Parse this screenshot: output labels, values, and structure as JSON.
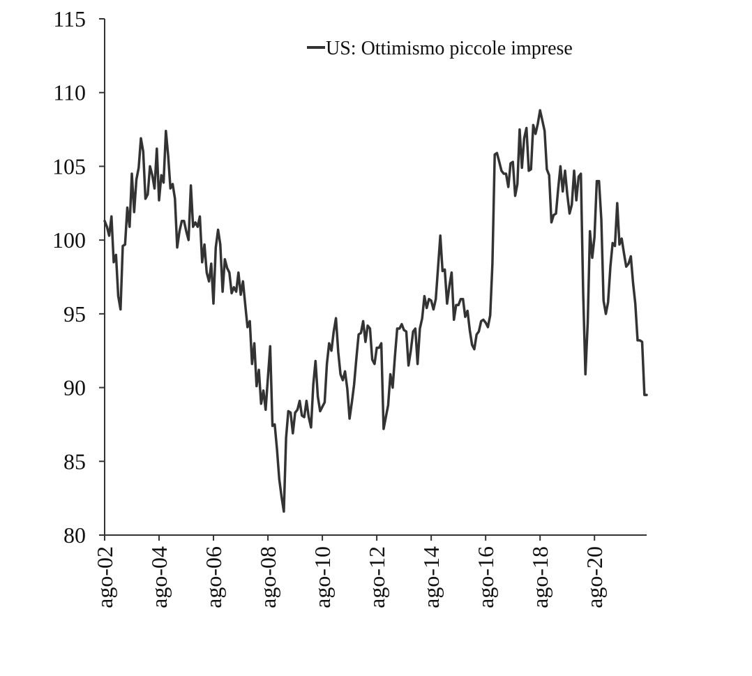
{
  "chart_data": {
    "type": "line",
    "title": "",
    "xlabel": "",
    "ylabel": "",
    "ylim": [
      80,
      115
    ],
    "yticks": [
      80,
      85,
      90,
      95,
      100,
      105,
      110,
      115
    ],
    "xlim": [
      2002.583,
      2022.5
    ],
    "xticks": [
      {
        "x": 2002.583,
        "label": "ago-02"
      },
      {
        "x": 2004.583,
        "label": "ago-04"
      },
      {
        "x": 2006.583,
        "label": "ago-06"
      },
      {
        "x": 2008.583,
        "label": "ago-08"
      },
      {
        "x": 2010.583,
        "label": "ago-10"
      },
      {
        "x": 2012.583,
        "label": "ago-12"
      },
      {
        "x": 2014.583,
        "label": "ago-14"
      },
      {
        "x": 2016.583,
        "label": "ago-16"
      },
      {
        "x": 2018.583,
        "label": "ago-18"
      },
      {
        "x": 2020.583,
        "label": "ago-20"
      }
    ],
    "grid": false,
    "legend_position": "top-right",
    "color": "#333333",
    "series": [
      {
        "name": "US: Ottimismo piccole imprese",
        "points": [
          [
            2002.583,
            101.3
          ],
          [
            2002.667,
            100.9
          ],
          [
            2002.75,
            100.3
          ],
          [
            2002.833,
            101.6
          ],
          [
            2002.917,
            98.5
          ],
          [
            2003.0,
            99.0
          ],
          [
            2003.083,
            96.2
          ],
          [
            2003.167,
            95.3
          ],
          [
            2003.25,
            99.6
          ],
          [
            2003.333,
            99.7
          ],
          [
            2003.417,
            102.2
          ],
          [
            2003.5,
            100.9
          ],
          [
            2003.583,
            104.5
          ],
          [
            2003.667,
            101.9
          ],
          [
            2003.75,
            104.1
          ],
          [
            2003.833,
            104.9
          ],
          [
            2003.917,
            106.9
          ],
          [
            2004.0,
            106.0
          ],
          [
            2004.083,
            102.8
          ],
          [
            2004.167,
            103.1
          ],
          [
            2004.25,
            105.0
          ],
          [
            2004.333,
            104.4
          ],
          [
            2004.417,
            103.5
          ],
          [
            2004.5,
            106.2
          ],
          [
            2004.583,
            102.7
          ],
          [
            2004.667,
            104.4
          ],
          [
            2004.75,
            103.9
          ],
          [
            2004.833,
            107.4
          ],
          [
            2004.917,
            105.7
          ],
          [
            2005.0,
            103.5
          ],
          [
            2005.083,
            103.8
          ],
          [
            2005.167,
            102.8
          ],
          [
            2005.25,
            99.5
          ],
          [
            2005.333,
            100.6
          ],
          [
            2005.417,
            101.3
          ],
          [
            2005.5,
            101.3
          ],
          [
            2005.583,
            100.6
          ],
          [
            2005.667,
            100.0
          ],
          [
            2005.75,
            103.7
          ],
          [
            2005.833,
            100.9
          ],
          [
            2005.917,
            101.2
          ],
          [
            2006.0,
            100.9
          ],
          [
            2006.083,
            101.6
          ],
          [
            2006.167,
            98.5
          ],
          [
            2006.25,
            99.7
          ],
          [
            2006.333,
            97.8
          ],
          [
            2006.417,
            97.2
          ],
          [
            2006.5,
            98.4
          ],
          [
            2006.583,
            95.7
          ],
          [
            2006.667,
            99.5
          ],
          [
            2006.75,
            100.7
          ],
          [
            2006.833,
            99.7
          ],
          [
            2006.917,
            96.5
          ],
          [
            2007.0,
            98.7
          ],
          [
            2007.083,
            98.1
          ],
          [
            2007.167,
            97.8
          ],
          [
            2007.25,
            96.4
          ],
          [
            2007.333,
            96.8
          ],
          [
            2007.417,
            96.5
          ],
          [
            2007.5,
            97.8
          ],
          [
            2007.583,
            96.3
          ],
          [
            2007.667,
            97.2
          ],
          [
            2007.75,
            95.6
          ],
          [
            2007.833,
            94.1
          ],
          [
            2007.917,
            94.5
          ],
          [
            2008.0,
            91.6
          ],
          [
            2008.083,
            93.0
          ],
          [
            2008.167,
            90.1
          ],
          [
            2008.25,
            91.2
          ],
          [
            2008.333,
            88.9
          ],
          [
            2008.417,
            89.8
          ],
          [
            2008.5,
            88.5
          ],
          [
            2008.583,
            90.7
          ],
          [
            2008.667,
            92.8
          ],
          [
            2008.75,
            87.4
          ],
          [
            2008.833,
            87.5
          ],
          [
            2008.917,
            85.8
          ],
          [
            2009.0,
            83.8
          ],
          [
            2009.083,
            82.6
          ],
          [
            2009.167,
            81.6
          ],
          [
            2009.25,
            86.6
          ],
          [
            2009.333,
            88.4
          ],
          [
            2009.417,
            88.3
          ],
          [
            2009.5,
            86.9
          ],
          [
            2009.583,
            88.3
          ],
          [
            2009.667,
            88.5
          ],
          [
            2009.75,
            89.1
          ],
          [
            2009.833,
            88.1
          ],
          [
            2009.917,
            88.0
          ],
          [
            2010.0,
            89.1
          ],
          [
            2010.083,
            88.0
          ],
          [
            2010.167,
            87.3
          ],
          [
            2010.25,
            90.2
          ],
          [
            2010.333,
            91.8
          ],
          [
            2010.417,
            89.4
          ],
          [
            2010.5,
            88.4
          ],
          [
            2010.583,
            88.7
          ],
          [
            2010.667,
            89.0
          ],
          [
            2010.75,
            91.6
          ],
          [
            2010.833,
            93.0
          ],
          [
            2010.917,
            92.5
          ],
          [
            2011.0,
            93.8
          ],
          [
            2011.083,
            94.7
          ],
          [
            2011.167,
            92.4
          ],
          [
            2011.25,
            90.9
          ],
          [
            2011.333,
            90.5
          ],
          [
            2011.417,
            91.1
          ],
          [
            2011.5,
            89.9
          ],
          [
            2011.583,
            87.9
          ],
          [
            2011.667,
            89.0
          ],
          [
            2011.75,
            90.2
          ],
          [
            2011.833,
            92.0
          ],
          [
            2011.917,
            93.6
          ],
          [
            2012.0,
            93.7
          ],
          [
            2012.083,
            94.5
          ],
          [
            2012.167,
            93.1
          ],
          [
            2012.25,
            94.2
          ],
          [
            2012.333,
            94.0
          ],
          [
            2012.417,
            91.9
          ],
          [
            2012.5,
            91.6
          ],
          [
            2012.583,
            92.7
          ],
          [
            2012.667,
            92.7
          ],
          [
            2012.75,
            93.0
          ],
          [
            2012.833,
            87.2
          ],
          [
            2012.917,
            88.0
          ],
          [
            2013.0,
            88.8
          ],
          [
            2013.083,
            90.9
          ],
          [
            2013.167,
            90.0
          ],
          [
            2013.25,
            92.1
          ],
          [
            2013.333,
            94.0
          ],
          [
            2013.417,
            94.0
          ],
          [
            2013.5,
            94.3
          ],
          [
            2013.583,
            93.9
          ],
          [
            2013.667,
            93.8
          ],
          [
            2013.75,
            91.5
          ],
          [
            2013.833,
            92.5
          ],
          [
            2013.917,
            93.8
          ],
          [
            2014.0,
            94.0
          ],
          [
            2014.083,
            91.6
          ],
          [
            2014.167,
            94.0
          ],
          [
            2014.25,
            94.7
          ],
          [
            2014.333,
            96.2
          ],
          [
            2014.417,
            95.4
          ],
          [
            2014.5,
            96.0
          ],
          [
            2014.583,
            95.9
          ],
          [
            2014.667,
            95.3
          ],
          [
            2014.75,
            96.0
          ],
          [
            2014.833,
            98.1
          ],
          [
            2014.917,
            100.3
          ],
          [
            2015.0,
            97.9
          ],
          [
            2015.083,
            98.0
          ],
          [
            2015.167,
            95.7
          ],
          [
            2015.25,
            96.9
          ],
          [
            2015.333,
            97.8
          ],
          [
            2015.417,
            94.6
          ],
          [
            2015.5,
            95.6
          ],
          [
            2015.583,
            95.6
          ],
          [
            2015.667,
            96.0
          ],
          [
            2015.75,
            96.0
          ],
          [
            2015.833,
            94.8
          ],
          [
            2015.917,
            95.2
          ],
          [
            2016.0,
            93.9
          ],
          [
            2016.083,
            92.9
          ],
          [
            2016.167,
            92.6
          ],
          [
            2016.25,
            93.6
          ],
          [
            2016.333,
            93.8
          ],
          [
            2016.417,
            94.5
          ],
          [
            2016.5,
            94.6
          ],
          [
            2016.583,
            94.4
          ],
          [
            2016.667,
            94.1
          ],
          [
            2016.75,
            94.9
          ],
          [
            2016.833,
            98.4
          ],
          [
            2016.917,
            105.8
          ],
          [
            2017.0,
            105.9
          ],
          [
            2017.083,
            105.3
          ],
          [
            2017.167,
            104.7
          ],
          [
            2017.25,
            104.5
          ],
          [
            2017.333,
            104.5
          ],
          [
            2017.417,
            103.6
          ],
          [
            2017.5,
            105.2
          ],
          [
            2017.583,
            105.3
          ],
          [
            2017.667,
            103.0
          ],
          [
            2017.75,
            103.8
          ],
          [
            2017.833,
            107.5
          ],
          [
            2017.917,
            104.9
          ],
          [
            2018.0,
            106.9
          ],
          [
            2018.083,
            107.6
          ],
          [
            2018.167,
            104.7
          ],
          [
            2018.25,
            104.8
          ],
          [
            2018.333,
            107.8
          ],
          [
            2018.417,
            107.2
          ],
          [
            2018.5,
            107.9
          ],
          [
            2018.583,
            108.8
          ],
          [
            2018.667,
            108.1
          ],
          [
            2018.75,
            107.4
          ],
          [
            2018.833,
            104.8
          ],
          [
            2018.917,
            104.4
          ],
          [
            2019.0,
            101.2
          ],
          [
            2019.083,
            101.7
          ],
          [
            2019.167,
            101.8
          ],
          [
            2019.25,
            103.5
          ],
          [
            2019.333,
            105.0
          ],
          [
            2019.417,
            103.3
          ],
          [
            2019.5,
            104.7
          ],
          [
            2019.583,
            103.1
          ],
          [
            2019.667,
            101.8
          ],
          [
            2019.75,
            102.4
          ],
          [
            2019.833,
            104.7
          ],
          [
            2019.917,
            102.7
          ],
          [
            2020.0,
            104.3
          ],
          [
            2020.083,
            104.5
          ],
          [
            2020.167,
            96.4
          ],
          [
            2020.25,
            90.9
          ],
          [
            2020.333,
            94.4
          ],
          [
            2020.417,
            100.6
          ],
          [
            2020.5,
            98.8
          ],
          [
            2020.583,
            100.2
          ],
          [
            2020.667,
            104.0
          ],
          [
            2020.75,
            104.0
          ],
          [
            2020.833,
            101.4
          ],
          [
            2020.917,
            95.9
          ],
          [
            2021.0,
            95.0
          ],
          [
            2021.083,
            95.8
          ],
          [
            2021.167,
            98.2
          ],
          [
            2021.25,
            99.8
          ],
          [
            2021.333,
            99.6
          ],
          [
            2021.417,
            102.5
          ],
          [
            2021.5,
            99.7
          ],
          [
            2021.583,
            100.1
          ],
          [
            2021.667,
            99.1
          ],
          [
            2021.75,
            98.2
          ],
          [
            2021.833,
            98.4
          ],
          [
            2021.917,
            98.9
          ],
          [
            2022.0,
            97.1
          ],
          [
            2022.083,
            95.7
          ],
          [
            2022.167,
            93.2
          ],
          [
            2022.25,
            93.2
          ],
          [
            2022.333,
            93.1
          ],
          [
            2022.417,
            89.5
          ],
          [
            2022.5,
            89.5
          ]
        ]
      }
    ]
  }
}
